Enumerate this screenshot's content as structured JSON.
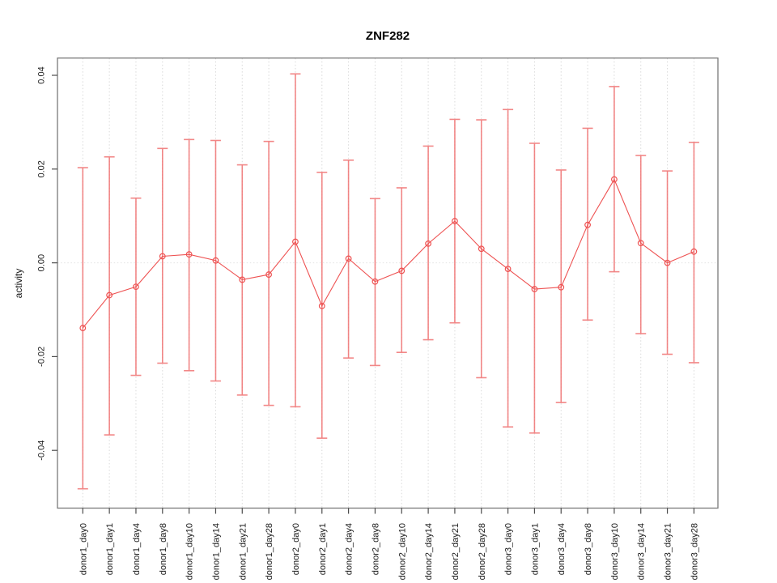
{
  "chart_data": {
    "type": "line",
    "title": "ZNF282",
    "ylabel": "activity",
    "xlabel": "",
    "legend": "none",
    "grid": "dotted vertical gridline at every category; dotted horizontal gridline at y=0",
    "ylim": [
      -0.0523,
      0.0438
    ],
    "yticks": [
      -0.04,
      -0.02,
      0,
      0.02,
      0.04
    ],
    "ytick_labels": [
      "-0.04",
      "-0.02",
      "0.00",
      "0.02",
      "0.04"
    ],
    "series_name": "activity",
    "marker": "open-circle",
    "error_bars": true,
    "categories": [
      "donor1_day0",
      "donor1_day1",
      "donor1_day4",
      "donor1_day8",
      "donor1_day10",
      "donor1_day14",
      "donor1_day21",
      "donor1_day28",
      "donor2_day0",
      "donor2_day1",
      "donor2_day4",
      "donor2_day8",
      "donor2_day10",
      "donor2_day14",
      "donor2_day21",
      "donor2_day28",
      "donor3_day0",
      "donor3_day1",
      "donor3_day4",
      "donor3_day8",
      "donor3_day10",
      "donor3_day14",
      "donor3_day21",
      "donor3_day28"
    ],
    "values": [
      -0.0139,
      -0.0069,
      -0.0051,
      0.0014,
      0.0018,
      0.0005,
      -0.0036,
      -0.0025,
      0.0045,
      -0.0092,
      0.0009,
      -0.004,
      -0.0017,
      0.0041,
      0.0089,
      0.003,
      -0.0013,
      -0.0056,
      -0.0052,
      0.0081,
      0.0178,
      0.0042,
      0.0,
      0.0024
    ],
    "error_upper": [
      0.0203,
      0.0226,
      0.0138,
      0.0244,
      0.0263,
      0.0261,
      0.0209,
      0.0259,
      0.0403,
      0.0193,
      0.0219,
      0.0137,
      0.016,
      0.0249,
      0.0306,
      0.0305,
      0.0327,
      0.0255,
      0.0198,
      0.0287,
      0.0376,
      0.0229,
      0.0196,
      0.0257
    ],
    "error_lower": [
      -0.0482,
      -0.0367,
      -0.024,
      -0.0214,
      -0.023,
      -0.0252,
      -0.0282,
      -0.0304,
      -0.0307,
      -0.0374,
      -0.0203,
      -0.0219,
      -0.0191,
      -0.0164,
      -0.0128,
      -0.0245,
      -0.035,
      -0.0363,
      -0.0298,
      -0.0122,
      -0.0019,
      -0.0151,
      -0.0195,
      -0.0213
    ],
    "colors": {
      "line": "#ee5252",
      "point": "#ee5252",
      "error_bar": "#f06a6a",
      "grid": "#d9d9d9",
      "zero_line": "#e2e2e2",
      "box": "#7a7a7a",
      "tick": "#4d4d4d",
      "text": "#1a1a1a",
      "title": "#000000"
    }
  }
}
